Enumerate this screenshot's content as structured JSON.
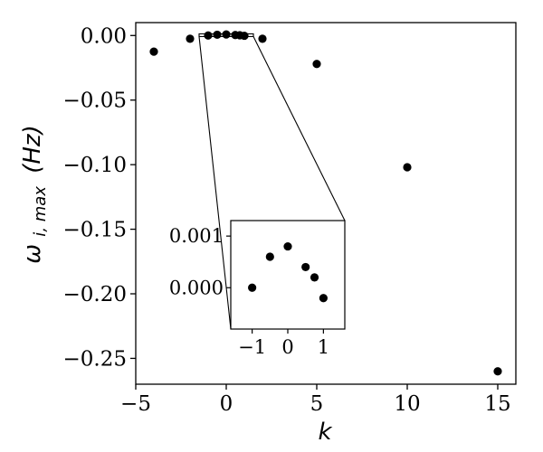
{
  "chart_data": {
    "type": "scatter",
    "xlabel": "k",
    "ylabel_main": "ω",
    "ylabel_sub": "i, max",
    "ylabel_unit": "(Hz)",
    "xlim": [
      -5,
      16
    ],
    "ylim": [
      -0.27,
      0.01
    ],
    "xticks": [
      -5,
      0,
      5,
      10,
      15
    ],
    "xtick_labels": [
      "−5",
      "0",
      "5",
      "10",
      "15"
    ],
    "yticks": [
      0.0,
      -0.05,
      -0.1,
      -0.15,
      -0.2,
      -0.25
    ],
    "ytick_labels": [
      "0.00",
      "−0.05",
      "−0.10",
      "−0.15",
      "−0.20",
      "−0.25"
    ],
    "grid": false,
    "legend": "none",
    "marker_color": "#000000",
    "points": [
      {
        "x": -4,
        "y": -0.0125
      },
      {
        "x": -2,
        "y": -0.0025
      },
      {
        "x": -1,
        "y": 0.0
      },
      {
        "x": -0.5,
        "y": 0.0006
      },
      {
        "x": 0,
        "y": 0.0008
      },
      {
        "x": 0.5,
        "y": 0.0004
      },
      {
        "x": 0.75,
        "y": 0.0002
      },
      {
        "x": 1,
        "y": -0.0002
      },
      {
        "x": 2,
        "y": -0.0025
      },
      {
        "x": 5,
        "y": -0.022
      },
      {
        "x": 10,
        "y": -0.102
      },
      {
        "x": 15,
        "y": -0.26
      }
    ],
    "inset": {
      "xlim": [
        -1.6,
        1.6
      ],
      "ylim": [
        -0.0008,
        0.0013
      ],
      "xticks": [
        -1,
        0,
        1
      ],
      "xtick_labels": [
        "−1",
        "0",
        "1"
      ],
      "yticks": [
        0.001,
        0.0
      ],
      "ytick_labels": [
        "0.001",
        "0.000"
      ],
      "zoom_region": {
        "x": [
          -1.5,
          1.5
        ],
        "y": [
          -0.0008,
          0.0013
        ]
      }
    }
  }
}
